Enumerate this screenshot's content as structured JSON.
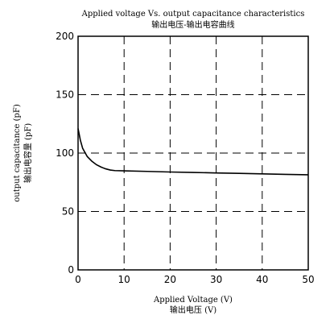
{
  "chart_data": {
    "type": "line",
    "title": "Applied voltage Vs. output capacitance characteristics",
    "subtitle": "输出电压-输出电容曲线",
    "xlabel": "Applied Voltage (V)",
    "xlabel_sub": "输出电压 (V)",
    "ylabel": "output capacitance (pF)",
    "ylabel_sub": "输出电容量 (pF)",
    "xlim": [
      0,
      50
    ],
    "ylim": [
      0,
      200
    ],
    "x_ticks": [
      0,
      10,
      20,
      30,
      40,
      50
    ],
    "y_ticks": [
      0,
      50,
      100,
      150,
      200
    ],
    "x_tick_labels": [
      "0",
      "10",
      "20",
      "30",
      "40",
      "50"
    ],
    "y_tick_labels": [
      "0",
      "50",
      "100",
      "150",
      "200"
    ],
    "grid": "dashed",
    "legend": "none",
    "line_color": "#000000",
    "series": [
      {
        "x": [
          0,
          0.5,
          1,
          2,
          3,
          4,
          5,
          6,
          7,
          8,
          10,
          15,
          20,
          25,
          30,
          35,
          40,
          45,
          50
        ],
        "values": [
          121,
          111,
          104,
          97,
          93,
          90,
          88,
          86.5,
          85.5,
          85,
          84.8,
          84.3,
          83.8,
          83.4,
          83,
          82.6,
          82.2,
          81.8,
          81.4
        ]
      }
    ]
  }
}
